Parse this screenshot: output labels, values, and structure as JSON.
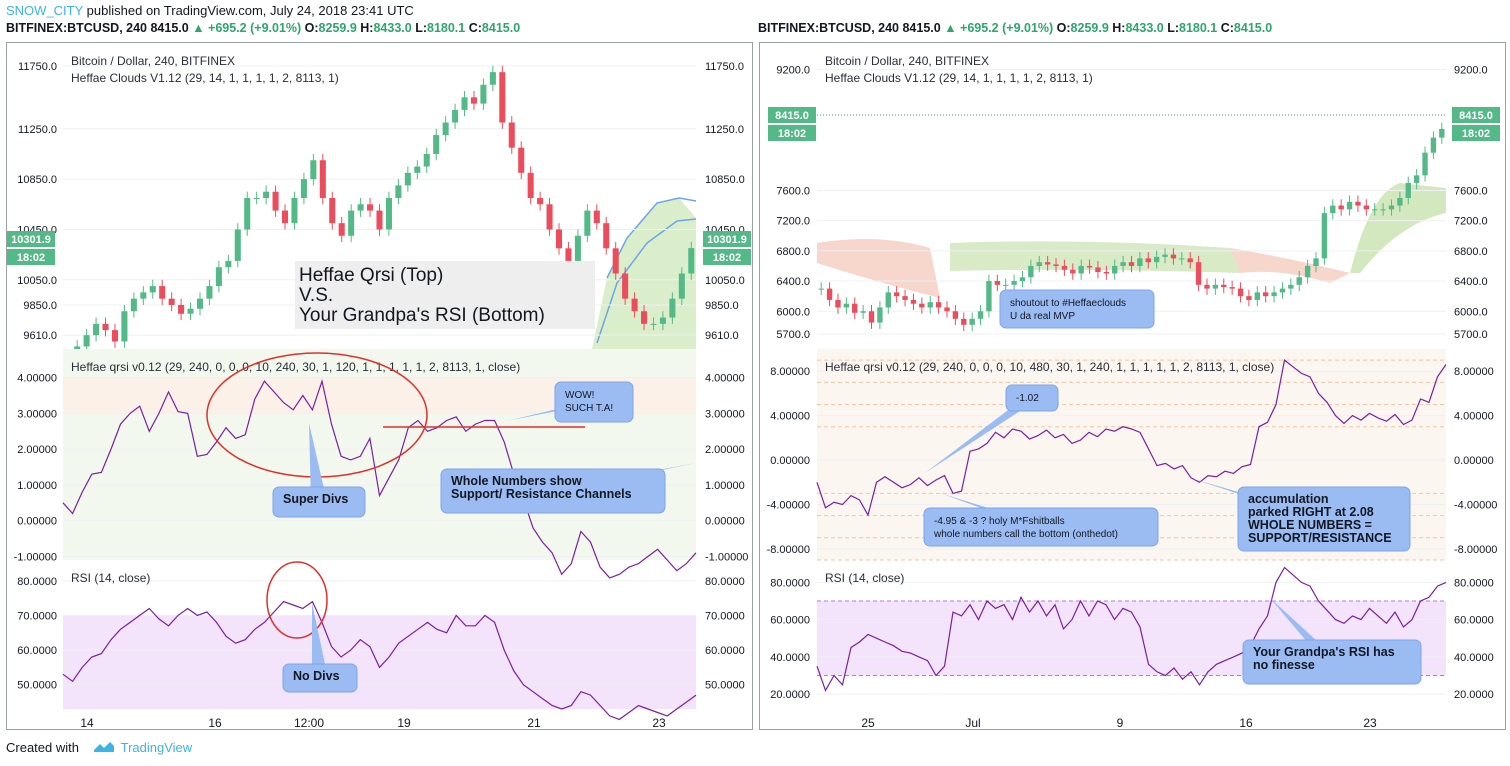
{
  "header": {
    "author": "SNOW_CITY",
    "rest": " published on TradingView.com, July 24, 2018 23:41 UTC"
  },
  "symbol_line": {
    "symbol": "BITFINEX:BTCUSD, 240",
    "price": "8415.0",
    "change": "▲ +695.2 (+9.01%)",
    "o_label": "O:",
    "o": "8259.9",
    "h_label": "H:",
    "h": "8433.0",
    "l_label": "L:",
    "l": "8180.1",
    "c_label": "C:",
    "c": "8415.0"
  },
  "footer": {
    "created": "Created with",
    "brand": "TradingView"
  },
  "colors": {
    "up": "#53b987",
    "down": "#eb4d5c",
    "indicator": "#7b1fa2",
    "accent": "#3bb3e4",
    "callout": "#9bbcf2"
  },
  "chart_data": [
    {
      "type": "candlestick",
      "panel": "left",
      "title": "Bitcoin / Dollar, 240, BITFINEX",
      "subtitle": "Heffae Clouds V1.12 (29, 14, 1, 1, 1, 1, 2, 8113, 1)",
      "ylim": [
        9500,
        11900
      ],
      "y_ticks": [
        "11750.0",
        "11250.0",
        "10850.0",
        "10450.0",
        "10050.0",
        "9850.0",
        "9610.0"
      ],
      "y_tick_values": [
        11750,
        11250,
        10850,
        10450,
        10050,
        9850,
        9610
      ],
      "last_price_label": "10301.9",
      "countdown_label": "18:02",
      "x_ticks": [
        "14",
        "16",
        "12:00",
        "19",
        "21",
        "23"
      ],
      "annotation": [
        "Heffae Qrsi (Top)",
        "V.S.",
        "Your Grandpa's RSI (Bottom)"
      ],
      "close": [
        9400,
        9520,
        9610,
        9700,
        9650,
        9560,
        9800,
        9900,
        9950,
        10000,
        9900,
        9850,
        9780,
        9820,
        9900,
        10000,
        10150,
        10200,
        10450,
        10700,
        10700,
        10750,
        10600,
        10500,
        10700,
        10850,
        11000,
        10700,
        10500,
        10400,
        10600,
        10650,
        10600,
        10450,
        10700,
        10800,
        10900,
        10950,
        11050,
        11200,
        11300,
        11400,
        11500,
        11450,
        11600,
        11700,
        11300,
        11100,
        10900,
        10700,
        10650,
        10450,
        10300,
        10200,
        10400,
        10600,
        10500,
        10300,
        10100,
        9900,
        9800,
        9700,
        9700,
        9750,
        9900,
        10100,
        10301.9
      ]
    },
    {
      "type": "line",
      "panel": "left-qrsi",
      "title": "Heffae qrsi v0.12 (29, 240, 0, 0, 0, 10, 240, 30, 1, 120, 1, 1, 1, 1, 1, 2, 8113, 1, close)",
      "ylim": [
        -1.1,
        4.8
      ],
      "y_ticks": [
        "4.00000",
        "3.00000",
        "2.00000",
        "1.00000",
        "0.00000",
        "-1.00000"
      ],
      "y_tick_values": [
        4,
        3,
        2,
        1,
        0,
        -1
      ],
      "annotations": [
        "WOW!",
        "SUCH T.A!",
        "Super Divs",
        "Whole Numbers show",
        "Support/ Resistance Channels"
      ],
      "values": [
        0.5,
        0.2,
        0.8,
        1.3,
        1.35,
        2.0,
        2.7,
        3.0,
        3.2,
        2.5,
        3.0,
        3.6,
        3.05,
        3.0,
        1.8,
        1.85,
        2.2,
        2.6,
        2.3,
        2.4,
        3.4,
        3.9,
        3.6,
        3.3,
        3.1,
        3.5,
        3.1,
        3.9,
        2.7,
        1.8,
        1.7,
        1.8,
        2.3,
        0.7,
        1.2,
        1.7,
        2.6,
        2.8,
        2.5,
        2.6,
        2.8,
        2.9,
        2.5,
        2.7,
        2.8,
        2.8,
        2.2,
        1.3,
        0.6,
        -0.2,
        -0.6,
        -0.9,
        -1.5,
        -1.2,
        -0.3,
        -0.6,
        -1.3,
        -1.6,
        -1.5,
        -1.3,
        -1.2,
        -1.0,
        -0.8,
        -1.1,
        -1.4,
        -1.2,
        -0.9
      ]
    },
    {
      "type": "line",
      "panel": "left-rsi",
      "title": "RSI (14, close)",
      "ylim": [
        43,
        86
      ],
      "y_ticks": [
        "80.0000",
        "70.0000",
        "60.0000",
        "50.0000"
      ],
      "y_tick_values": [
        80,
        70,
        60,
        50
      ],
      "bands": [
        30,
        70
      ],
      "annotations": [
        "No Divs"
      ],
      "values": [
        53,
        51,
        55,
        58,
        59,
        63,
        66,
        68,
        70,
        72,
        69,
        67,
        70,
        72,
        70,
        71,
        68,
        64,
        62,
        63,
        66,
        68,
        71,
        74,
        73,
        72,
        74,
        68,
        61,
        58,
        60,
        63,
        61,
        55,
        58,
        62,
        64,
        66,
        68,
        66,
        65,
        70,
        67,
        67,
        70,
        68,
        60,
        54,
        50,
        48,
        46,
        44,
        43,
        44,
        48,
        47,
        44,
        41,
        40,
        42,
        44,
        43,
        42,
        41,
        43,
        45,
        47
      ]
    },
    {
      "type": "candlestick",
      "panel": "right",
      "title": "Bitcoin / Dollar, 240, BITFINEX",
      "subtitle": "Heffae Clouds V1.12 (29, 14, 1, 1, 1, 1, 2, 8113, 1)",
      "ylim": [
        5500,
        9500
      ],
      "y_ticks": [
        "9200.0",
        "7600.0",
        "7200.0",
        "6800.0",
        "6400.0",
        "6000.0",
        "5700.0"
      ],
      "y_tick_values": [
        9200,
        7600,
        7200,
        6800,
        6400,
        6000,
        5700
      ],
      "last_price_label": "8415.0",
      "countdown_label": "18:02",
      "x_ticks": [
        "25",
        "Jul",
        "9",
        "16",
        "23"
      ],
      "annotations": [
        "shoutout to #Heffaeclouds",
        "U da real MVP"
      ],
      "close": [
        6300,
        6150,
        6050,
        6100,
        5980,
        6000,
        5850,
        6050,
        6250,
        6200,
        6150,
        6100,
        6050,
        6120,
        6050,
        6000,
        5900,
        5820,
        5900,
        6000,
        6400,
        6350,
        6350,
        6400,
        6450,
        6600,
        6650,
        6620,
        6600,
        6550,
        6500,
        6600,
        6580,
        6520,
        6500,
        6600,
        6650,
        6600,
        6700,
        6650,
        6720,
        6750,
        6700,
        6700,
        6650,
        6350,
        6300,
        6350,
        6320,
        6300,
        6200,
        6150,
        6250,
        6200,
        6250,
        6300,
        6350,
        6450,
        6600,
        6700,
        7300,
        7400,
        7350,
        7450,
        7400,
        7350,
        7350,
        7350,
        7400,
        7500,
        7700,
        7800,
        8100,
        8300,
        8415
      ]
    },
    {
      "type": "line",
      "panel": "right-qrsi",
      "title": "Heffae qrsi v0.12 (29, 240, 0, 0, 0, 10, 480, 30, 1, 240, 1, 1, 1, 1, 1, 2, 8113, 1, close)",
      "ylim": [
        -9,
        10
      ],
      "y_ticks": [
        "8.00000",
        "4.00000",
        "0.00000",
        "-4.00000",
        "-8.00000"
      ],
      "y_tick_values": [
        8,
        4,
        0,
        -4,
        -8
      ],
      "annotations": [
        "-1.02",
        "-4.95 & -3 ? holy M*Fshitballs",
        "whole numbers call the bottom (onthedot)",
        "accumulation",
        "parked RIGHT at 2.08",
        "WHOLE NUMBERS =",
        "SUPPORT/RESISTANCE"
      ],
      "values": [
        -2,
        -4.3,
        -3.8,
        -4,
        -3.2,
        -3.6,
        -4.95,
        -2.0,
        -1.5,
        -2.0,
        -2.5,
        -2.2,
        -1.6,
        -2.3,
        -1.8,
        -1.4,
        -3.0,
        -2.8,
        0.8,
        1.0,
        1.5,
        2.5,
        2.0,
        2.8,
        2.6,
        1.9,
        2.2,
        2.7,
        2.0,
        2.3,
        1.5,
        1.8,
        2.5,
        2.1,
        2.8,
        2.6,
        3.0,
        2.8,
        2.5,
        1.0,
        -0.5,
        -0.3,
        -0.8,
        -0.5,
        -1.6,
        -2.0,
        -1.4,
        -1.5,
        -1.0,
        -1.2,
        -0.6,
        -0.4,
        3.0,
        3.4,
        5.0,
        9.0,
        8.4,
        7.8,
        7.5,
        6.0,
        5.2,
        4.0,
        3.3,
        4.0,
        3.6,
        4.2,
        3.8,
        3.5,
        4.1,
        3.2,
        3.6,
        5.5,
        5.2,
        7.5,
        8.6
      ]
    },
    {
      "type": "line",
      "panel": "right-rsi",
      "title": "RSI (14, close)",
      "ylim": [
        12,
        92
      ],
      "y_ticks": [
        "80.0000",
        "60.0000",
        "40.0000",
        "20.0000"
      ],
      "y_tick_values": [
        80,
        60,
        40,
        20
      ],
      "bands": [
        30,
        70
      ],
      "annotations": [
        "Your Grandpa's RSI has",
        "no finesse"
      ],
      "values": [
        35,
        22,
        30,
        25,
        45,
        48,
        52,
        50,
        48,
        46,
        43,
        42,
        40,
        38,
        30,
        35,
        64,
        62,
        68,
        60,
        70,
        66,
        68,
        60,
        72,
        64,
        70,
        62,
        68,
        55,
        60,
        70,
        62,
        70,
        68,
        60,
        66,
        64,
        56,
        36,
        32,
        30,
        34,
        28,
        32,
        25,
        32,
        36,
        38,
        40,
        42,
        46,
        55,
        62,
        80,
        88,
        84,
        80,
        78,
        70,
        65,
        60,
        58,
        62,
        60,
        66,
        62,
        58,
        64,
        56,
        60,
        70,
        72,
        78,
        80
      ]
    }
  ]
}
